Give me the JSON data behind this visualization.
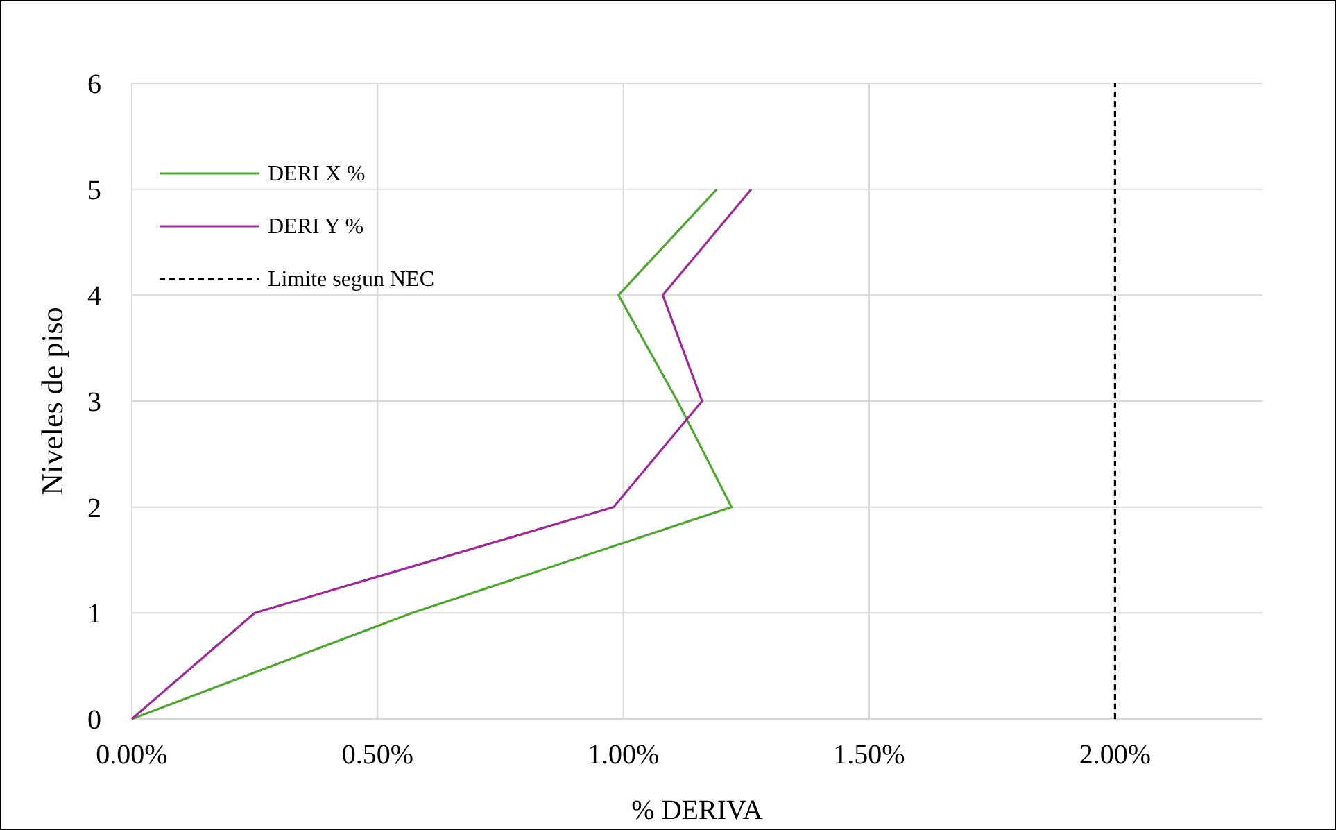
{
  "chart_data": {
    "type": "line",
    "xlabel": "% DERIVA",
    "ylabel": "Niveles de piso",
    "xlim": [
      0,
      2.3
    ],
    "xticks": [
      {
        "value": 0,
        "label": "0.00%"
      },
      {
        "value": 0.5,
        "label": "0.50%"
      },
      {
        "value": 1,
        "label": "1.00%"
      },
      {
        "value": 1.5,
        "label": "1.50%"
      },
      {
        "value": 2,
        "label": "2.00%"
      }
    ],
    "ylim": [
      0,
      6
    ],
    "yticks": [
      0,
      1,
      2,
      3,
      4,
      5,
      6
    ],
    "grid": true,
    "legend": "top left",
    "marker": "none",
    "series": [
      {
        "name": "DERI X %",
        "color": "#4ea72e",
        "x": [
          0,
          0.57,
          1.22,
          1.11,
          0.99,
          1.19
        ],
        "values": [
          0,
          1,
          2,
          3,
          4,
          5
        ],
        "line_style": "solid"
      },
      {
        "name": "DERI Y %",
        "color": "#a0279a",
        "x": [
          0,
          0.25,
          0.98,
          1.16,
          1.08,
          1.26
        ],
        "values": [
          0,
          1,
          2,
          3,
          4,
          5
        ],
        "line_style": "solid"
      },
      {
        "name": "Limite segun NEC",
        "color": "#000000",
        "x": [
          2,
          2
        ],
        "values": [
          0,
          6
        ],
        "line_style": "dashed"
      }
    ]
  }
}
